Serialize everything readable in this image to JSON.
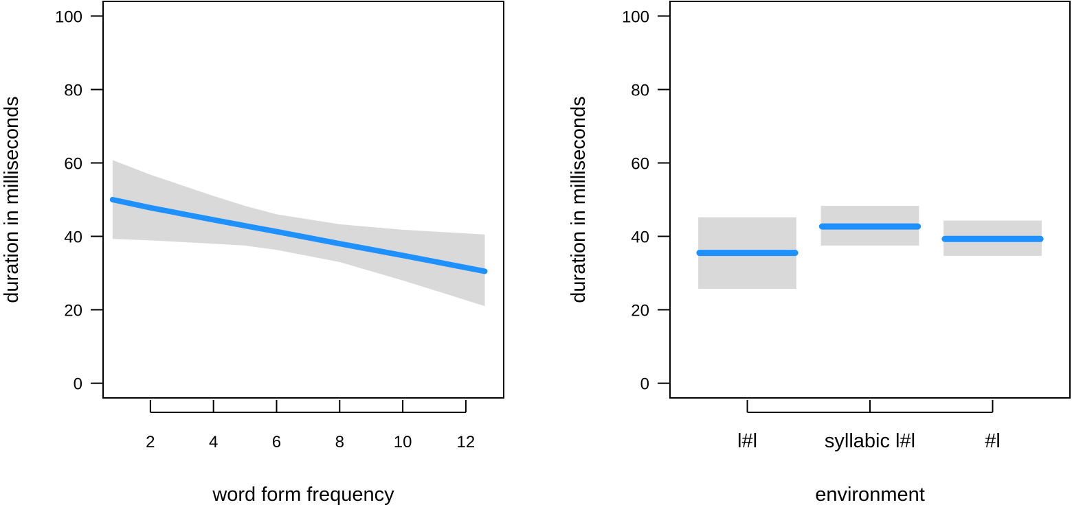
{
  "chart_data": [
    {
      "type": "line",
      "xlabel": "word form frequency",
      "ylabel": "duration in milliseconds",
      "xlim": [
        0.5,
        13.2
      ],
      "ylim": [
        -4,
        104
      ],
      "x_ticks": [
        2,
        4,
        6,
        8,
        10,
        12
      ],
      "y_ticks": [
        0,
        20,
        40,
        60,
        80,
        100
      ],
      "grid": false,
      "legend": "none",
      "fit": {
        "x": [
          0.8,
          2.0,
          4.0,
          6.0,
          8.0,
          10.0,
          12.6
        ],
        "y": [
          50.0,
          47.8,
          44.5,
          41.3,
          38.0,
          34.8,
          30.5
        ]
      },
      "ci_band": {
        "x": [
          0.8,
          2.0,
          4.0,
          5.0,
          6.0,
          8.0,
          10.0,
          12.6
        ],
        "upper": [
          60.8,
          56.8,
          51.0,
          48.3,
          46.0,
          43.3,
          41.8,
          40.5
        ],
        "lower": [
          39.3,
          38.9,
          38.0,
          37.5,
          36.3,
          33.0,
          28.0,
          21.0
        ]
      },
      "colors": {
        "fit": "#1e90ff",
        "band": "#d9d9d9"
      }
    },
    {
      "type": "bar",
      "xlabel": "environment",
      "ylabel": "duration in milliseconds",
      "ylim": [
        -4,
        104
      ],
      "y_ticks": [
        0,
        20,
        40,
        60,
        80,
        100
      ],
      "categories": [
        "l#l",
        "syllabic l#l",
        "#l"
      ],
      "values": [
        35.5,
        42.7,
        39.3
      ],
      "ci_lower": [
        25.7,
        37.5,
        34.7
      ],
      "ci_upper": [
        45.2,
        48.3,
        44.3
      ],
      "grid": false,
      "legend": "none",
      "colors": {
        "fit": "#1e90ff",
        "band": "#d9d9d9"
      }
    }
  ]
}
